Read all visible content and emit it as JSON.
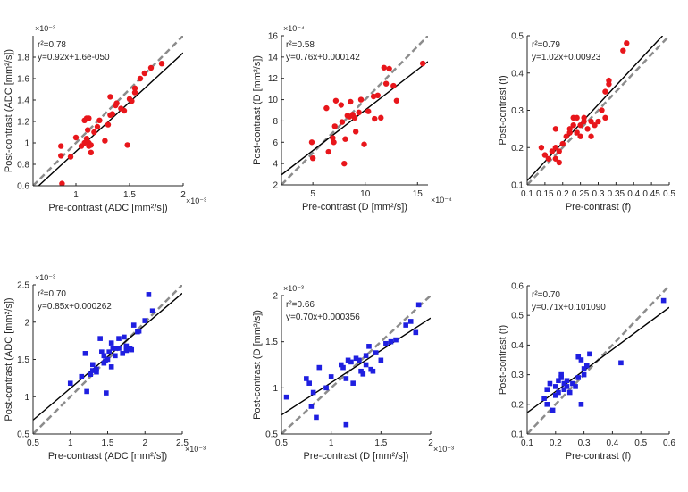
{
  "chart_data": [
    {
      "type": "scatter",
      "panel_id": "adc-red",
      "xlabel": "Pre-contrast (ADC [mm²/s])",
      "ylabel": "Post-contrast (ADC [mm²/s])",
      "x_exponent": "×10⁻³",
      "y_exponent": "×10⁻³",
      "xlim": [
        0.6,
        2.0
      ],
      "ylim": [
        0.6,
        2.0
      ],
      "xticks": [
        1,
        1.5,
        2
      ],
      "xtick_labels": [
        "1",
        "1.5",
        "2"
      ],
      "yticks": [
        0.6,
        0.8,
        1,
        1.2,
        1.4,
        1.6,
        1.8
      ],
      "ytick_labels": [
        "0.6",
        "0.8",
        "1",
        "1.2",
        "1.4",
        "1.6",
        "1.8"
      ],
      "r2_label": "r²=0.78",
      "equation": "y=0.92x+1.6e-050",
      "fit": {
        "slope": 0.92,
        "intercept": 0.0
      },
      "marker": "circle",
      "color": "#e8161b",
      "x": [
        0.86,
        0.86,
        0.87,
        0.95,
        1.0,
        1.05,
        1.08,
        1.08,
        1.1,
        1.1,
        1.11,
        1.12,
        1.12,
        1.12,
        1.14,
        1.14,
        1.17,
        1.2,
        1.22,
        1.27,
        1.3,
        1.32,
        1.32,
        1.34,
        1.37,
        1.38,
        1.42,
        1.45,
        1.48,
        1.5,
        1.52,
        1.55,
        1.55,
        1.6,
        1.64,
        1.7,
        1.8
      ],
      "y": [
        0.97,
        0.88,
        0.62,
        0.87,
        1.05,
        0.97,
        1.0,
        1.21,
        1.04,
        1.23,
        1.12,
        0.97,
        1.0,
        1.23,
        0.91,
        0.98,
        1.1,
        1.15,
        1.21,
        1.02,
        1.17,
        1.26,
        1.43,
        1.27,
        1.35,
        1.37,
        1.32,
        1.3,
        0.98,
        1.41,
        1.39,
        1.51,
        1.47,
        1.6,
        1.65,
        1.7,
        1.74
      ]
    },
    {
      "type": "scatter",
      "panel_id": "d-red",
      "xlabel": "Pre-contrast (D [mm²/s])",
      "ylabel": "Post-contrast (D [mm²/s])",
      "x_exponent": "×10⁻⁴",
      "y_exponent": "×10⁻⁴",
      "xlim": [
        2,
        16
      ],
      "ylim": [
        2,
        16
      ],
      "xticks": [
        5,
        10,
        15
      ],
      "xtick_labels": [
        "5",
        "10",
        "15"
      ],
      "yticks": [
        2,
        4,
        6,
        8,
        10,
        12,
        14,
        16
      ],
      "ytick_labels": [
        "2",
        "4",
        "6",
        "8",
        "10",
        "12",
        "14",
        "16"
      ],
      "r2_label": "r²=0.58",
      "equation": "y=0.76x+0.000142",
      "fit": {
        "slope": 0.76,
        "intercept": 1.42
      },
      "marker": "circle",
      "color": "#e8161b",
      "x": [
        4.9,
        5.0,
        6.3,
        6.5,
        6.9,
        7.0,
        7.1,
        7.2,
        7.7,
        7.8,
        8.0,
        8.1,
        8.3,
        8.5,
        8.6,
        8.8,
        9.0,
        9.1,
        9.4,
        9.6,
        9.9,
        10.3,
        10.8,
        10.9,
        11.2,
        11.5,
        11.8,
        12.0,
        12.3,
        12.7,
        13.0,
        15.5
      ],
      "y": [
        6.0,
        4.5,
        9.2,
        5.1,
        6.4,
        6.0,
        7.5,
        9.9,
        9.5,
        7.9,
        4.0,
        6.3,
        8.5,
        8.4,
        9.8,
        8.6,
        8.3,
        7.0,
        8.8,
        10.0,
        5.8,
        8.9,
        10.3,
        8.2,
        10.4,
        8.3,
        13.0,
        11.5,
        12.9,
        11.3,
        9.9,
        13.4
      ]
    },
    {
      "type": "scatter",
      "panel_id": "f-red",
      "xlabel": "Pre-contrast (f)",
      "ylabel": "Post-contrast (f)",
      "x_exponent": "",
      "y_exponent": "",
      "xlim": [
        0.1,
        0.5
      ],
      "ylim": [
        0.1,
        0.5
      ],
      "xticks": [
        0.1,
        0.15,
        0.2,
        0.25,
        0.3,
        0.35,
        0.4,
        0.45,
        0.5
      ],
      "xtick_labels": [
        "0.1",
        "0.15",
        "0.2",
        "0.25",
        "0.3",
        "0.35",
        "0.4",
        "0.45",
        "0.5"
      ],
      "yticks": [
        0.1,
        0.2,
        0.3,
        0.4,
        0.5
      ],
      "ytick_labels": [
        "0.1",
        "0.2",
        "0.3",
        "0.4",
        "0.5"
      ],
      "r2_label": "r²=0.79",
      "equation": "y=1.02x+0.00923",
      "fit": {
        "slope": 1.02,
        "intercept": 0.00923
      },
      "marker": "circle",
      "color": "#e8161b",
      "x": [
        0.14,
        0.15,
        0.16,
        0.17,
        0.18,
        0.18,
        0.18,
        0.19,
        0.19,
        0.2,
        0.21,
        0.22,
        0.22,
        0.23,
        0.23,
        0.24,
        0.24,
        0.25,
        0.25,
        0.26,
        0.26,
        0.27,
        0.28,
        0.28,
        0.29,
        0.3,
        0.31,
        0.32,
        0.32,
        0.33,
        0.33,
        0.37,
        0.38
      ],
      "y": [
        0.2,
        0.18,
        0.17,
        0.19,
        0.2,
        0.25,
        0.17,
        0.19,
        0.16,
        0.21,
        0.23,
        0.24,
        0.25,
        0.28,
        0.26,
        0.28,
        0.24,
        0.26,
        0.23,
        0.28,
        0.27,
        0.25,
        0.27,
        0.23,
        0.26,
        0.27,
        0.3,
        0.35,
        0.28,
        0.37,
        0.38,
        0.46,
        0.48
      ]
    },
    {
      "type": "scatter",
      "panel_id": "adc-blue",
      "xlabel": "Pre-contrast (ADC [mm²/s])",
      "ylabel": "Post-contrast (ADC [mm²/s])",
      "x_exponent": "×10⁻³",
      "y_exponent": "×10⁻³",
      "xlim": [
        0.5,
        2.5
      ],
      "ylim": [
        0.5,
        2.5
      ],
      "xticks": [
        0.5,
        1,
        1.5,
        2,
        2.5
      ],
      "xtick_labels": [
        "0.5",
        "1",
        "1.5",
        "2",
        "2.5"
      ],
      "yticks": [
        0.5,
        1,
        1.5,
        2,
        2.5
      ],
      "ytick_labels": [
        "0.5",
        "1",
        "1.5",
        "2",
        "2.5"
      ],
      "r2_label": "r²=0.70",
      "equation": "y=0.85x+0.000262",
      "fit": {
        "slope": 0.85,
        "intercept": 0.262
      },
      "marker": "square",
      "color": "#1f1fe0",
      "x": [
        1.0,
        1.15,
        1.2,
        1.22,
        1.27,
        1.3,
        1.3,
        1.35,
        1.35,
        1.4,
        1.42,
        1.45,
        1.45,
        1.47,
        1.48,
        1.5,
        1.52,
        1.55,
        1.55,
        1.57,
        1.6,
        1.62,
        1.65,
        1.65,
        1.7,
        1.72,
        1.75,
        1.75,
        1.8,
        1.82,
        1.85,
        1.9,
        1.92,
        2.0,
        2.05,
        2.1
      ],
      "y": [
        1.18,
        1.27,
        1.58,
        1.07,
        1.3,
        1.43,
        1.35,
        1.33,
        1.37,
        1.78,
        1.6,
        1.45,
        1.55,
        1.48,
        1.05,
        1.5,
        1.6,
        1.4,
        1.72,
        1.65,
        1.55,
        1.65,
        1.78,
        1.65,
        1.58,
        1.8,
        1.62,
        1.68,
        1.64,
        1.63,
        1.96,
        1.87,
        1.88,
        2.02,
        2.37,
        2.15
      ]
    },
    {
      "type": "scatter",
      "panel_id": "d-blue",
      "xlabel": "Pre-contrast (D [mm²/s])",
      "ylabel": "Post-contrast (D [mm²/s])",
      "x_exponent": "×10⁻³",
      "y_exponent": "×10⁻³",
      "xlim": [
        0.5,
        2.0
      ],
      "ylim": [
        0.5,
        2.0
      ],
      "xticks": [
        0.5,
        1,
        1.5,
        2
      ],
      "xtick_labels": [
        "0.5",
        "1",
        "1.5",
        "2"
      ],
      "yticks": [
        0.5,
        1,
        1.5,
        2
      ],
      "ytick_labels": [
        "0.5",
        "1",
        "1.5",
        "2"
      ],
      "r2_label": "r²=0.66",
      "equation": "y=0.70x+0.000356",
      "fit": {
        "slope": 0.7,
        "intercept": 0.356
      },
      "marker": "square",
      "color": "#1f1fe0",
      "x": [
        0.55,
        0.75,
        0.78,
        0.8,
        0.82,
        0.85,
        0.88,
        0.95,
        1.0,
        1.1,
        1.12,
        1.15,
        1.15,
        1.17,
        1.2,
        1.22,
        1.25,
        1.28,
        1.3,
        1.32,
        1.35,
        1.35,
        1.38,
        1.4,
        1.42,
        1.45,
        1.5,
        1.55,
        1.6,
        1.65,
        1.75,
        1.8,
        1.85,
        1.88
      ],
      "y": [
        0.9,
        1.1,
        1.05,
        0.8,
        0.95,
        0.68,
        1.22,
        1.0,
        1.12,
        1.25,
        1.22,
        1.1,
        0.6,
        1.3,
        1.28,
        1.05,
        1.32,
        1.3,
        1.18,
        1.15,
        1.35,
        1.25,
        1.45,
        1.2,
        1.18,
        1.38,
        1.3,
        1.48,
        1.5,
        1.52,
        1.68,
        1.72,
        1.6,
        1.9
      ]
    },
    {
      "type": "scatter",
      "panel_id": "f-blue",
      "xlabel": "Pre-contrast (f)",
      "ylabel": "Post-contrast (f)",
      "x_exponent": "",
      "y_exponent": "",
      "xlim": [
        0.1,
        0.6
      ],
      "ylim": [
        0.1,
        0.6
      ],
      "xticks": [
        0.1,
        0.2,
        0.3,
        0.4,
        0.5,
        0.6
      ],
      "xtick_labels": [
        "0.1",
        "0.2",
        "0.3",
        "0.4",
        "0.5",
        "0.6"
      ],
      "yticks": [
        0.1,
        0.2,
        0.3,
        0.4,
        0.5,
        0.6
      ],
      "ytick_labels": [
        "0.1",
        "0.2",
        "0.3",
        "0.4",
        "0.5",
        "0.6"
      ],
      "r2_label": "r²=0.70",
      "equation": "y=0.71x+0.101090",
      "fit": {
        "slope": 0.71,
        "intercept": 0.10109
      },
      "marker": "square",
      "color": "#1f1fe0",
      "x": [
        0.16,
        0.17,
        0.17,
        0.18,
        0.19,
        0.2,
        0.2,
        0.21,
        0.21,
        0.22,
        0.22,
        0.23,
        0.23,
        0.24,
        0.24,
        0.25,
        0.26,
        0.27,
        0.28,
        0.28,
        0.29,
        0.29,
        0.3,
        0.3,
        0.31,
        0.32,
        0.43,
        0.58
      ],
      "y": [
        0.22,
        0.25,
        0.2,
        0.27,
        0.18,
        0.23,
        0.26,
        0.28,
        0.24,
        0.29,
        0.3,
        0.27,
        0.25,
        0.26,
        0.28,
        0.24,
        0.27,
        0.26,
        0.36,
        0.29,
        0.2,
        0.35,
        0.32,
        0.3,
        0.33,
        0.37,
        0.34,
        0.55
      ]
    }
  ]
}
